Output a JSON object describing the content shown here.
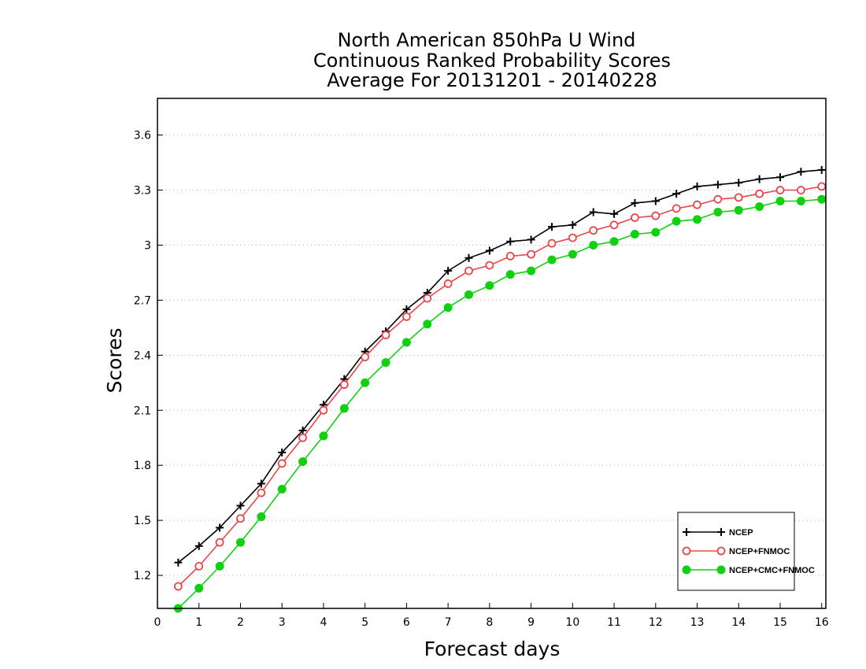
{
  "chart_data": {
    "type": "line",
    "title_lines": [
      "North American 850hPa U Wind",
      "Continuous Ranked Probability Scores",
      "Average For 20131201 - 20140228"
    ],
    "xlabel": "Forecast days",
    "ylabel": "Scores",
    "xlim": [
      0,
      16.1
    ],
    "ylim": [
      1.02,
      3.8
    ],
    "x_ticks": [
      "0",
      "1",
      "2",
      "3",
      "4",
      "5",
      "6",
      "7",
      "8",
      "9",
      "10",
      "11",
      "12",
      "13",
      "14",
      "15",
      "16"
    ],
    "y_ticks": [
      "1.2",
      "1.5",
      "1.8",
      "2.1",
      "2.4",
      "2.7",
      "3",
      "3.3",
      "3.6"
    ],
    "grid": "horizontal dotted",
    "legend_position": "bottom-right",
    "x": [
      0.5,
      1,
      1.5,
      2,
      2.5,
      3,
      3.5,
      4,
      4.5,
      5,
      5.5,
      6,
      6.5,
      7,
      7.5,
      8,
      8.5,
      9,
      9.5,
      10,
      10.5,
      11,
      11.5,
      12,
      12.5,
      13,
      13.5,
      14,
      14.5,
      15,
      15.5,
      16
    ],
    "series": [
      {
        "name": "NCEP",
        "color": "#000000",
        "marker": "plus",
        "values": [
          1.27,
          1.36,
          1.46,
          1.58,
          1.7,
          1.87,
          1.99,
          2.13,
          2.27,
          2.42,
          2.53,
          2.65,
          2.74,
          2.86,
          2.93,
          2.97,
          3.02,
          3.03,
          3.1,
          3.11,
          3.18,
          3.17,
          3.23,
          3.24,
          3.28,
          3.32,
          3.33,
          3.34,
          3.36,
          3.37,
          3.4,
          3.41
        ]
      },
      {
        "name": "NCEP+FNMOC",
        "color": "#e8474a",
        "marker": "open-circle",
        "values": [
          1.14,
          1.25,
          1.38,
          1.51,
          1.65,
          1.81,
          1.95,
          2.1,
          2.24,
          2.39,
          2.51,
          2.61,
          2.71,
          2.79,
          2.86,
          2.89,
          2.94,
          2.95,
          3.01,
          3.04,
          3.08,
          3.11,
          3.15,
          3.16,
          3.2,
          3.22,
          3.25,
          3.26,
          3.28,
          3.3,
          3.3,
          3.32
        ]
      },
      {
        "name": "NCEP+CMC+FNMOC",
        "color": "#10d010",
        "marker": "filled-circle",
        "values": [
          1.02,
          1.13,
          1.25,
          1.38,
          1.52,
          1.67,
          1.82,
          1.96,
          2.11,
          2.25,
          2.36,
          2.47,
          2.57,
          2.66,
          2.73,
          2.78,
          2.84,
          2.86,
          2.92,
          2.95,
          3.0,
          3.02,
          3.06,
          3.07,
          3.13,
          3.14,
          3.18,
          3.19,
          3.21,
          3.24,
          3.24,
          3.25
        ]
      }
    ]
  }
}
